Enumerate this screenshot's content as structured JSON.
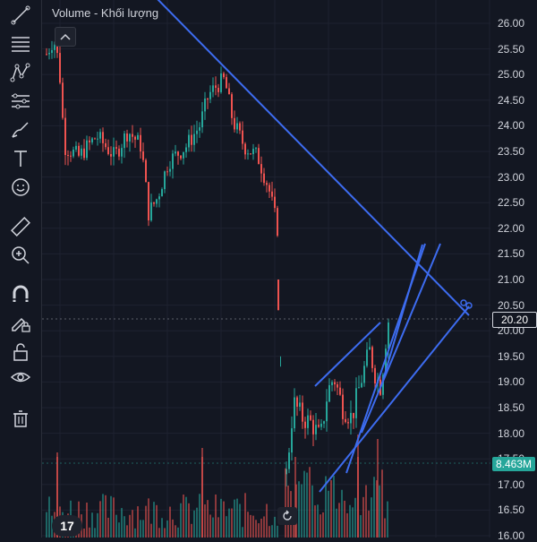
{
  "legend": {
    "title": "Volume - Khối lượng"
  },
  "toolbar": {
    "tools": [
      {
        "name": "trend-line-tool",
        "icon": "trend-line-icon"
      },
      {
        "name": "fib-tool",
        "icon": "horizontal-lines-icon"
      },
      {
        "name": "pattern-tool",
        "icon": "pattern-icon"
      },
      {
        "name": "prediction-tool",
        "icon": "projection-icon"
      },
      {
        "name": "brush-tool",
        "icon": "brush-icon"
      },
      {
        "name": "text-tool",
        "icon": "text-icon"
      },
      {
        "name": "emoji-tool",
        "icon": "smiley-icon"
      },
      {
        "name": "ruler-tool",
        "icon": "ruler-icon"
      },
      {
        "name": "zoom-tool",
        "icon": "zoom-in-icon"
      },
      {
        "name": "magnet-tool",
        "icon": "magnet-icon"
      },
      {
        "name": "lock-drawing-tool",
        "icon": "pencil-lock-icon"
      },
      {
        "name": "lock-all-tool",
        "icon": "unlock-icon"
      },
      {
        "name": "hide-tool",
        "icon": "eye-icon"
      },
      {
        "name": "delete-tool",
        "icon": "trash-icon"
      }
    ]
  },
  "price_axis": {
    "ticks": [
      "26.00",
      "25.50",
      "25.00",
      "24.50",
      "24.00",
      "23.50",
      "23.00",
      "22.50",
      "22.00",
      "21.50",
      "21.00",
      "20.50",
      "20.00",
      "19.50",
      "19.00",
      "18.50",
      "18.00",
      "17.50",
      "17.00",
      "16.50",
      "16.00"
    ],
    "last_price": "20.20",
    "volume_badge": "8.463M"
  },
  "colors": {
    "background": "#131722",
    "up": "#26a69a",
    "down": "#ef5350",
    "trendline": "#3d6cf0",
    "price_badge": "#131722",
    "volume_badge": "#26a69a"
  },
  "logo": {
    "text": "17"
  }
}
